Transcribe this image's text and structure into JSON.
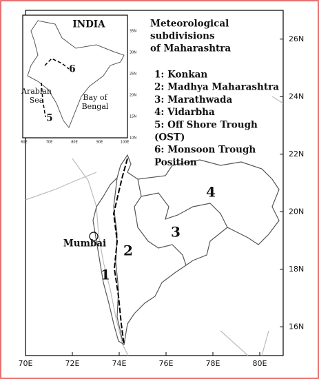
{
  "map": {
    "xlim": [
      70,
      81
    ],
    "ylim": [
      15,
      27
    ],
    "xticks": [
      {
        "value": 70,
        "label": "70E"
      },
      {
        "value": 72,
        "label": "72E"
      },
      {
        "value": 74,
        "label": "74E"
      },
      {
        "value": 76,
        "label": "76E"
      },
      {
        "value": 78,
        "label": "78E"
      },
      {
        "value": 80,
        "label": "80E"
      }
    ],
    "yticks": [
      {
        "value": 16,
        "label": "16N"
      },
      {
        "value": 18,
        "label": "18N"
      },
      {
        "value": 20,
        "label": "20N"
      },
      {
        "value": 22,
        "label": "22N"
      },
      {
        "value": 24,
        "label": "24N"
      },
      {
        "value": 26,
        "label": "26N"
      }
    ],
    "region_labels": [
      "1",
      "2",
      "3",
      "4"
    ],
    "city": "Mumbai"
  },
  "legend": {
    "title": [
      "Meteorological",
      "subdivisions",
      "of Maharashtra"
    ],
    "items": [
      "1: Konkan",
      "2: Madhya Maharashtra",
      "3: Marathwada",
      "4: Vidarbha",
      "5: Off Shore Trough",
      "(OST)",
      "6: Monsoon Trough",
      "Position"
    ]
  },
  "inset": {
    "title": "INDIA",
    "arabian_sea": [
      "Arabian",
      "Sea"
    ],
    "bay_of_bengal": [
      "Bay of",
      "Bengal"
    ],
    "trough_labels": [
      "5",
      "6"
    ],
    "xticks": [
      "60E",
      "70E",
      "80E",
      "90E",
      "100E"
    ],
    "yticks": [
      "35N",
      "30N",
      "25N",
      "20N",
      "15N",
      "10N"
    ]
  }
}
